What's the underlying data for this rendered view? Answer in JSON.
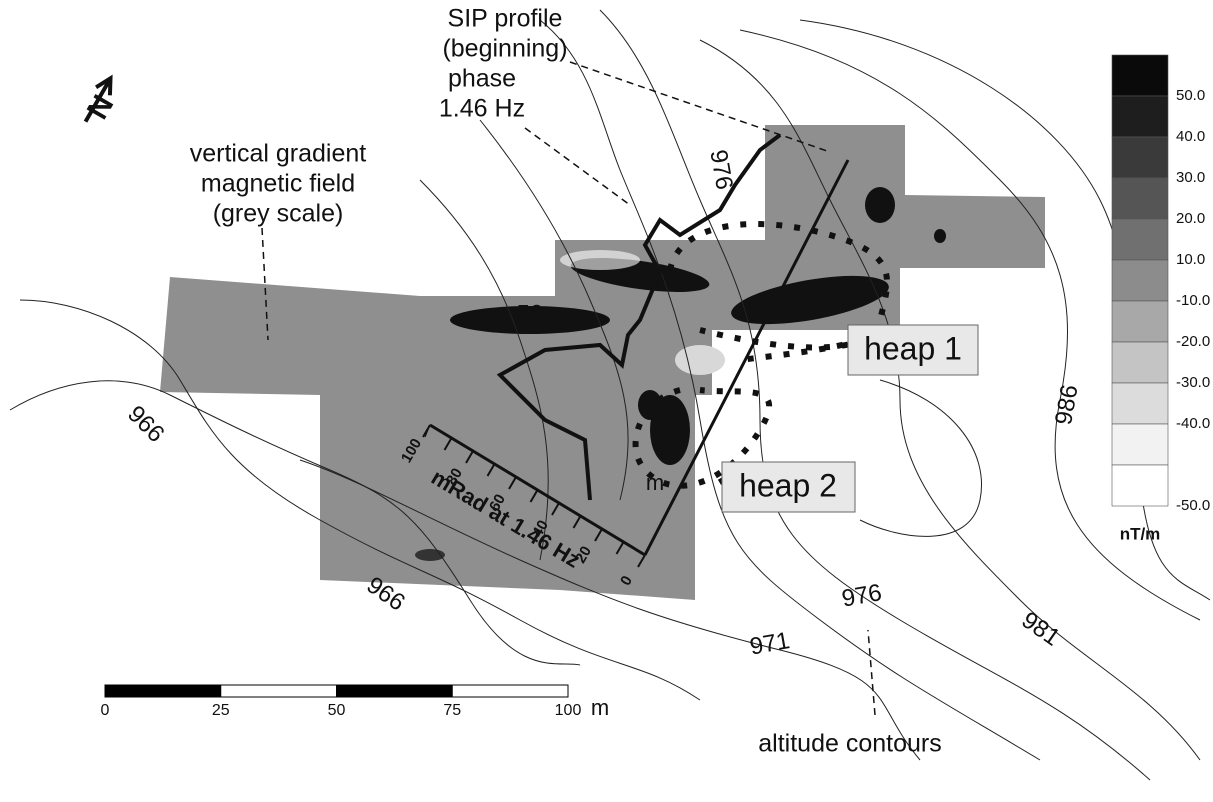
{
  "annotations": {
    "sip_profile": [
      "SIP profile",
      "(beginning)"
    ],
    "phase": [
      "phase",
      "1.46 Hz"
    ],
    "gradient": [
      "vertical gradient",
      "magnetic field",
      "(grey scale)"
    ],
    "heap1": "heap 1",
    "heap2": "heap 2",
    "altitude": "altitude contours",
    "north": "N"
  },
  "contour_labels": [
    "966",
    "966",
    "971",
    "976",
    "981",
    "986",
    "976",
    "50"
  ],
  "legend": {
    "labels": [
      "50.0",
      "40.0",
      "30.0",
      "20.0",
      "10.0",
      "-10.0",
      "-20.0",
      "-30.0",
      "-40.0",
      "-50.0"
    ],
    "colors": [
      "#0a0a0a",
      "#1e1e1e",
      "#3a3a3a",
      "#555",
      "#707070",
      "#8c8c8c",
      "#a8a8a8",
      "#c4c4c4",
      "#dcdcdc",
      "#f2f2f2",
      "#ffffff"
    ],
    "unit": "nT/m"
  },
  "scale_bar": {
    "labels": [
      "0",
      "25",
      "50",
      "75",
      "100"
    ],
    "unit": "m"
  },
  "sip_axis": {
    "labels": [
      "100",
      "80",
      "60",
      "40",
      "20",
      "0"
    ],
    "title": "mRad at 1.46 Hz",
    "unit": "m"
  }
}
